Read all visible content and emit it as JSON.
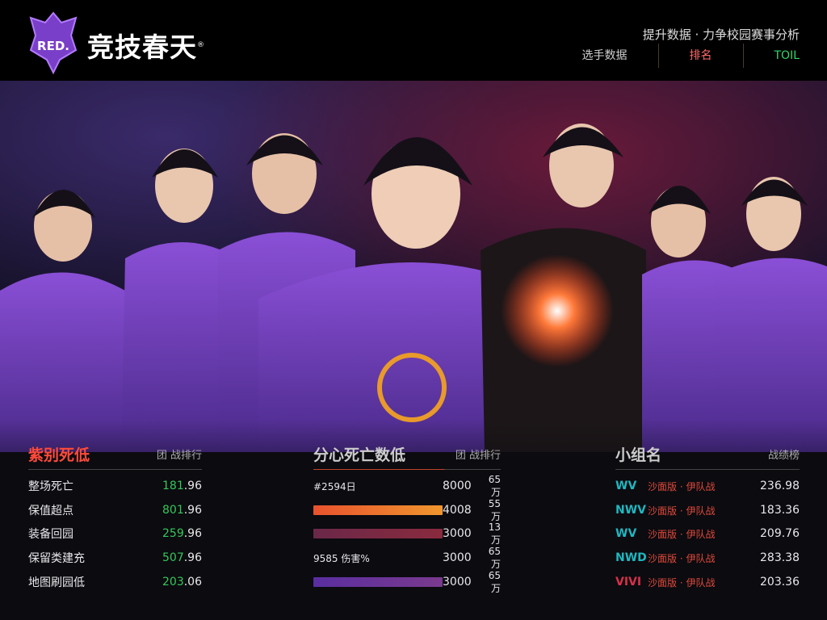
{
  "header": {
    "logo_text": "RED.",
    "brand": "竞技春天",
    "brand_mark": "®",
    "tagline": "提升数据 · 力争校园赛事分析",
    "nav": [
      {
        "label": "选手数据"
      },
      {
        "label": "排名"
      },
      {
        "label": "TOIL"
      }
    ]
  },
  "colors": {
    "accent": "#8a4fd6",
    "orange": "#f08a2a",
    "green": "#35c85a",
    "red": "#e04a3a",
    "teal": "#1fb7c0"
  },
  "left_panel": {
    "title": "紫别死低",
    "subtitle": "团 战排行",
    "rows": [
      {
        "label": "整场死亡",
        "value_main": "181",
        "value_dec": ".96"
      },
      {
        "label": "保值超点",
        "value_main": "801",
        "value_dec": ".96"
      },
      {
        "label": "装备回园",
        "value_main": "259",
        "value_dec": ".96"
      },
      {
        "label": "保留类建充",
        "value_main": "507",
        "value_dec": ".96"
      },
      {
        "label": "地图刷园低",
        "value_main": "203",
        "value_dec": ".06"
      }
    ]
  },
  "middle_panel": {
    "title": "分心死亡数低",
    "subtitle": "团 战排行",
    "rows": [
      {
        "label": "#2594日",
        "value": "8000",
        "extra": "65万",
        "bar": null
      },
      {
        "label": "",
        "value": "4008",
        "extra": "55万",
        "bar": {
          "fraction": 1.0,
          "from": "#e8522e",
          "to": "#f0962e"
        }
      },
      {
        "label": "",
        "value": "3000",
        "extra": "13万",
        "bar": {
          "fraction": 1.0,
          "from": "#6a2848",
          "to": "#8a2a3e"
        }
      },
      {
        "label": "9585 伤害%",
        "value": "3000",
        "extra": "65万",
        "bar": null
      },
      {
        "label": "",
        "value": "3000",
        "extra": "65万",
        "bar": {
          "fraction": 1.0,
          "from": "#5a2ea0",
          "to": "#7a3a8e"
        }
      }
    ]
  },
  "right_panel": {
    "title": "小组名",
    "subtitle": "战绩榜",
    "rows": [
      {
        "tag": "WV",
        "tag_color": "#1fb7c0",
        "name": "沙面版 · 伊队战",
        "value": "236.98"
      },
      {
        "tag": "NWV",
        "tag_color": "#1fb7c0",
        "name": "沙面版 · 伊队战",
        "value": "183.36"
      },
      {
        "tag": "WV",
        "tag_color": "#1fb7c0",
        "name": "沙面版 · 伊队战",
        "value": "209.76"
      },
      {
        "tag": "NWD",
        "tag_color": "#1fb7c0",
        "name": "沙面版 · 伊队战",
        "value": "283.38"
      },
      {
        "tag": "VIVI",
        "tag_color": "#d8304a",
        "name": "沙面版 · 伊队战",
        "value": "203.36"
      }
    ]
  }
}
